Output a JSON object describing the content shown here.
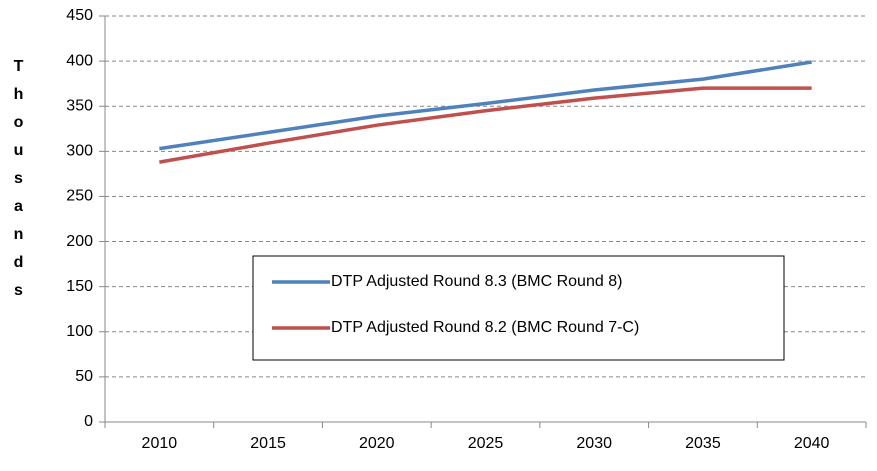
{
  "chart_data": {
    "type": "line",
    "y_label": "Thousands",
    "categories": [
      "2010",
      "2015",
      "2020",
      "2025",
      "2030",
      "2035",
      "2040"
    ],
    "series": [
      {
        "name": "DTP Adjusted Round 8.3 (BMC Round 8)",
        "color": "#4f81bd",
        "values": [
          303,
          321,
          339,
          353,
          368,
          380,
          399
        ]
      },
      {
        "name": "DTP Adjusted Round 8.2 (BMC Round 7-C)",
        "color": "#c0504d",
        "values": [
          288,
          309,
          329,
          345,
          359,
          370,
          370
        ]
      }
    ],
    "ylim": [
      0,
      450
    ],
    "yticks": [
      0,
      50,
      100,
      150,
      200,
      250,
      300,
      350,
      400,
      450
    ],
    "grid": true
  }
}
